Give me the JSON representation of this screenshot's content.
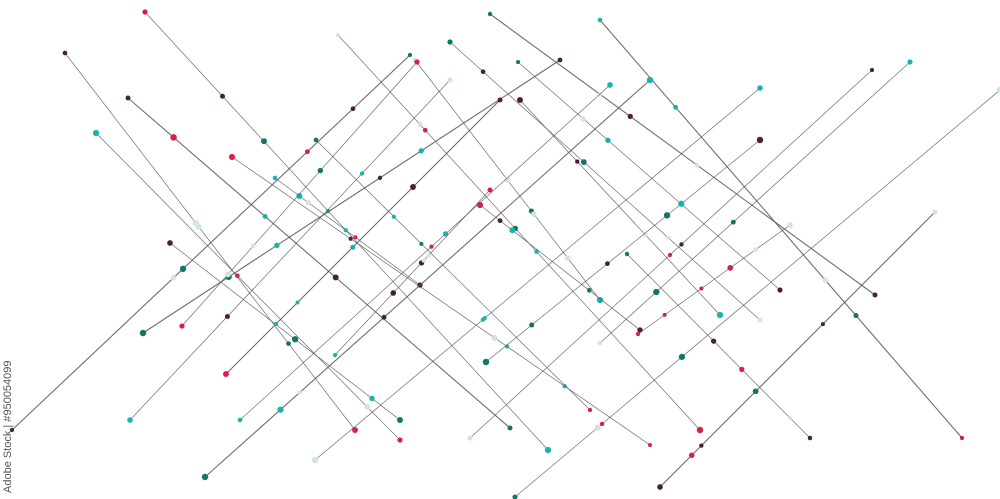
{
  "image": {
    "description_type": "abstract-network-lines",
    "credit": "Adobe Stock | #950054099",
    "colors": {
      "line": "#555555",
      "dot_crimson": "#d62246",
      "dot_plum": "#4a1f3a",
      "dot_teal": "#17b3b0",
      "dot_darkteal": "#11756b",
      "dot_pale": "#cfe8d8"
    }
  }
}
